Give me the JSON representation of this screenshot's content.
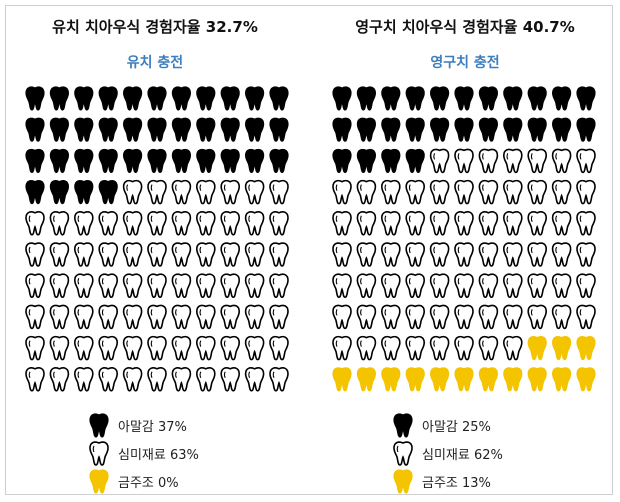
{
  "colors": {
    "black": "#000000",
    "white_outline": "#000000",
    "gold": "#f5c400",
    "subtitle": "#3d7ebc"
  },
  "chart_data": [
    {
      "type": "pictograph",
      "title": "유치 치아우식 경험자율 32.7%",
      "subtitle": "유치 충전",
      "grid": {
        "rows": 10,
        "cols": 11
      },
      "series": [
        {
          "name": "아말감",
          "percent": 37,
          "color": "black",
          "icon_count": 37
        },
        {
          "name": "심미재료",
          "percent": 63,
          "color": "white",
          "icon_count": 73
        },
        {
          "name": "금주조",
          "percent": 0,
          "color": "gold",
          "icon_count": 0
        }
      ],
      "legend_labels": [
        "아말감 37%",
        "심미재료 63%",
        "금주조 0%"
      ]
    },
    {
      "type": "pictograph",
      "title": "영구치 치아우식 경험자율 40.7%",
      "subtitle": "영구치 충전",
      "grid": {
        "rows": 10,
        "cols": 11
      },
      "series": [
        {
          "name": "아말감",
          "percent": 25,
          "color": "black",
          "icon_count": 26
        },
        {
          "name": "심미재료",
          "percent": 62,
          "color": "white",
          "icon_count": 70
        },
        {
          "name": "금주조",
          "percent": 13,
          "color": "gold",
          "icon_count": 14
        }
      ],
      "legend_labels": [
        "아말감 25%",
        "심미재료 62%",
        "금주조 13%"
      ]
    }
  ]
}
